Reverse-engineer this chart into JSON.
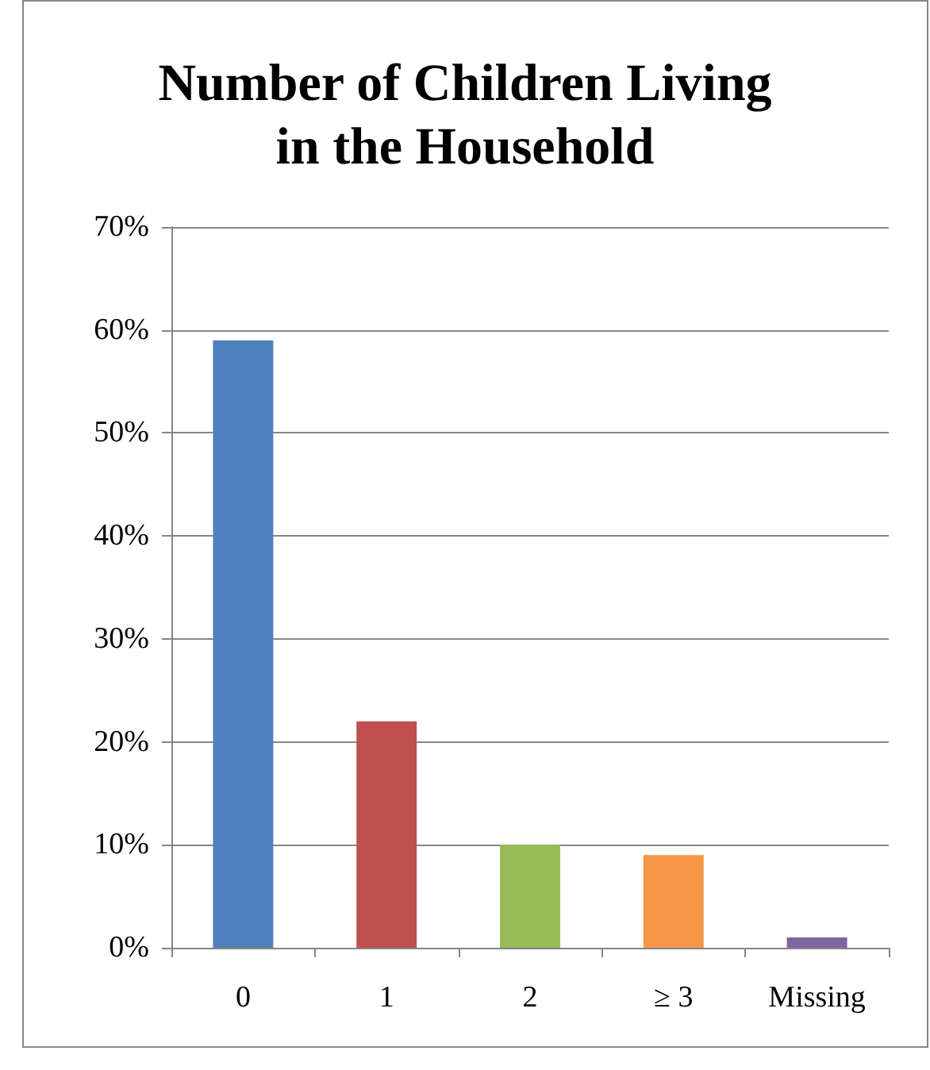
{
  "chart_data": {
    "type": "bar",
    "title": "Number of Children Living\nin the Household",
    "categories": [
      "0",
      "1",
      "2",
      "≥ 3",
      "Missing"
    ],
    "values": [
      59,
      22,
      10,
      9,
      1
    ],
    "colors": [
      "#4f81bd",
      "#c0504d",
      "#9bbb59",
      "#f79646",
      "#8064a2"
    ],
    "ylim": [
      0,
      70
    ],
    "yticks": [
      {
        "value": 0,
        "label": "0%"
      },
      {
        "value": 10,
        "label": "10%"
      },
      {
        "value": 20,
        "label": "20%"
      },
      {
        "value": 30,
        "label": "30%"
      },
      {
        "value": 40,
        "label": "40%"
      },
      {
        "value": 50,
        "label": "50%"
      },
      {
        "value": 60,
        "label": "60%"
      },
      {
        "value": 70,
        "label": "70%"
      }
    ],
    "grid": "y"
  }
}
